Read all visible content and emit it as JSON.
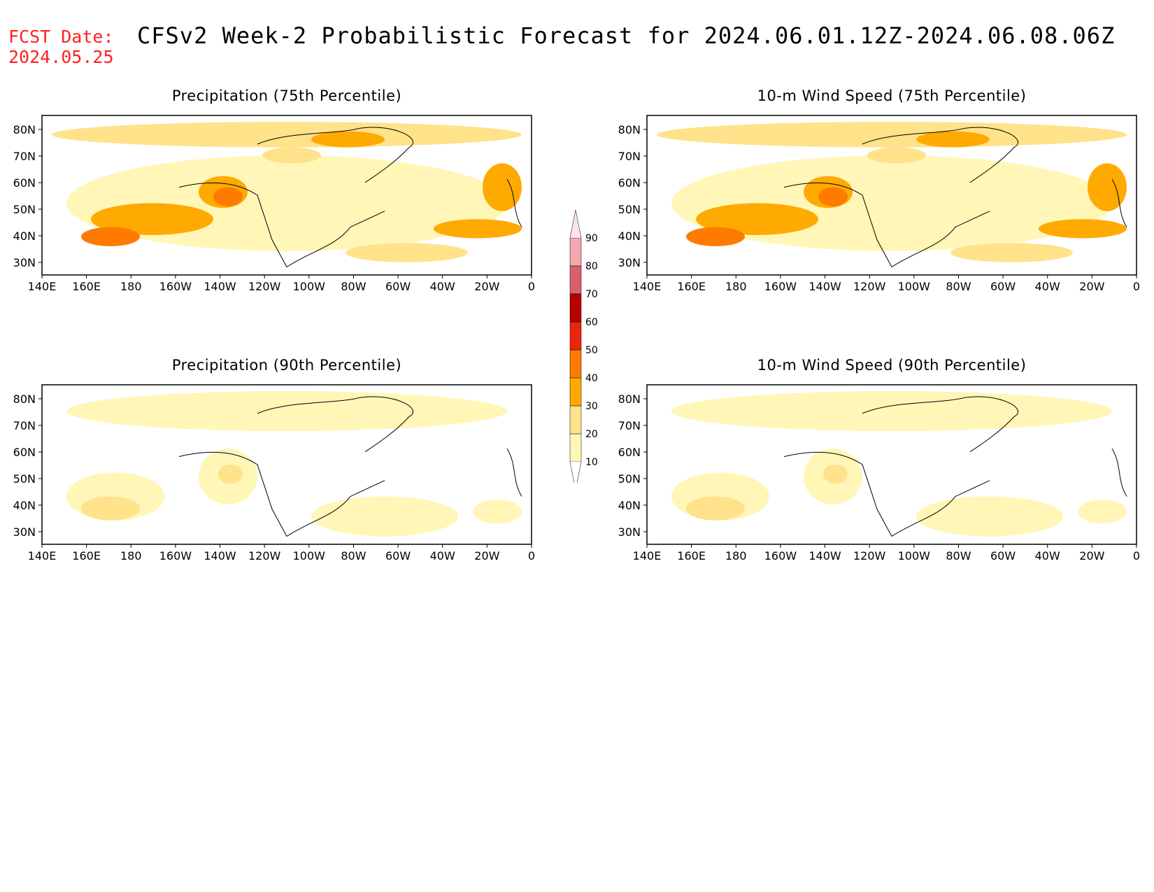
{
  "header": {
    "fcst_label": "FCST Date:",
    "fcst_date": "2024.05.25",
    "title": "CFSv2 Week-2 Probabilistic Forecast for 2024.06.01.12Z-2024.06.08.06Z"
  },
  "lat_labels": [
    "80N",
    "70N",
    "60N",
    "50N",
    "40N",
    "30N"
  ],
  "lon_labels": [
    "140E",
    "160E",
    "180",
    "160W",
    "140W",
    "120W",
    "100W",
    "80W",
    "60W",
    "40W",
    "20W",
    "0"
  ],
  "panels": [
    {
      "title": "Precipitation (75th Percentile)",
      "level": 2
    },
    {
      "title": "10-m Wind Speed (75th Percentile)",
      "level": 2
    },
    {
      "title": "Precipitation (90th Percentile)",
      "level": 1
    },
    {
      "title": "10-m Wind Speed (90th Percentile)",
      "level": 1
    }
  ],
  "colorbar": {
    "levels": [
      "10",
      "20",
      "30",
      "40",
      "50",
      "60",
      "70",
      "80",
      "90"
    ],
    "colors": [
      "#ffffff",
      "#fff6b8",
      "#ffe28a",
      "#ffaa00",
      "#ff7a00",
      "#e8260a",
      "#b80000",
      "#d9606a",
      "#f2a8b0",
      "#fde4e8"
    ]
  }
}
